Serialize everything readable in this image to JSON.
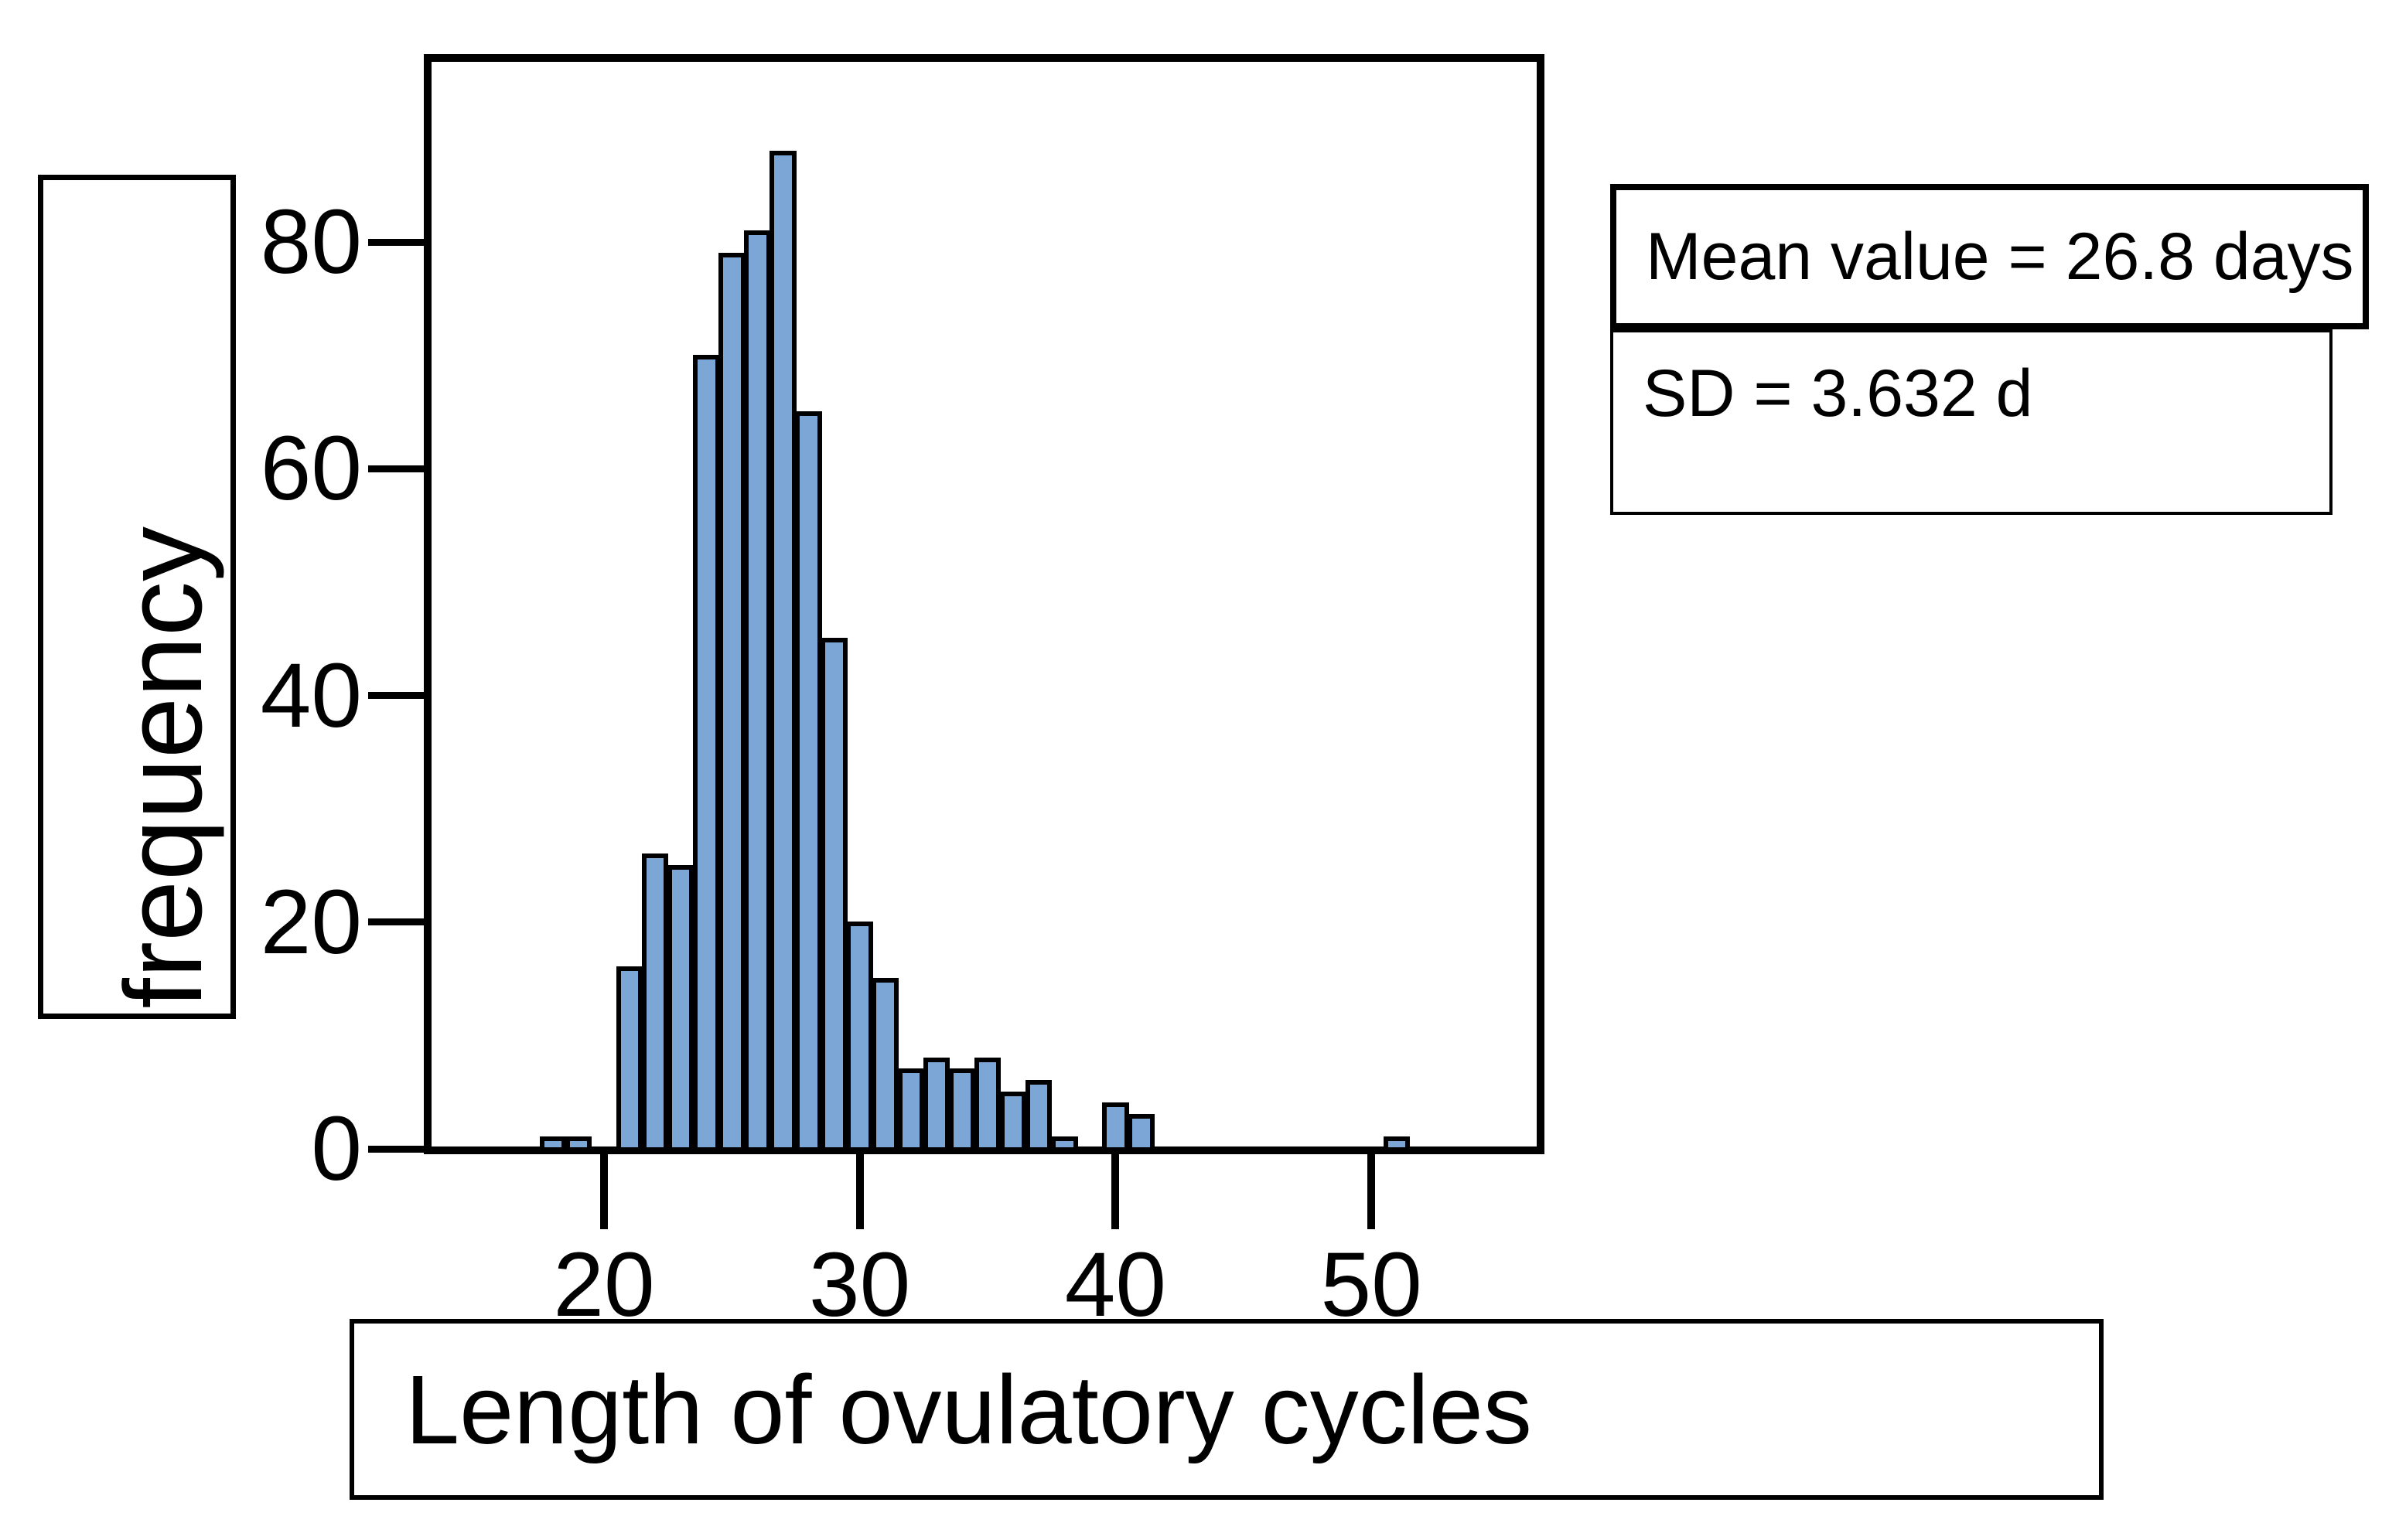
{
  "y_axis_box": {
    "label": "frequency"
  },
  "x_axis_box": {
    "label": "Length of ovulatory cycles"
  },
  "stat_boxes": {
    "mean_label": "Mean value = 26.8 days",
    "sd_label": "SD = 3.632 d"
  },
  "chart_data": {
    "type": "bar",
    "title": "",
    "xlabel": "Length of ovulatory cycles",
    "ylabel": "frequency",
    "x": [
      18,
      19,
      21,
      22,
      23,
      24,
      25,
      26,
      27,
      28,
      29,
      30,
      31,
      32,
      33,
      34,
      35,
      36,
      37,
      38,
      40,
      41,
      51
    ],
    "values": [
      1,
      1,
      16,
      26,
      25,
      70,
      79,
      81,
      88,
      65,
      45,
      20,
      15,
      7,
      8,
      7,
      8,
      5,
      6,
      1,
      4,
      3,
      1
    ],
    "bin_width": 1,
    "x_ticks": [
      20,
      30,
      40,
      50
    ],
    "y_ticks": [
      0,
      20,
      40,
      60,
      80
    ],
    "xlim": [
      13,
      56.8
    ],
    "ylim": [
      0,
      96.5
    ],
    "grid": false,
    "legend": null,
    "bar_color": "#7CA6D6",
    "bar_border_color": "#000000",
    "annotations": [
      "Mean value = 26.8 days",
      "SD = 3.632 d"
    ]
  }
}
